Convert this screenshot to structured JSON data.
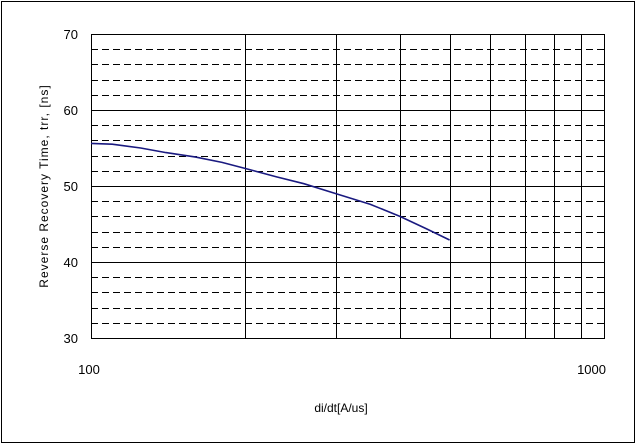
{
  "chart_data": {
    "type": "line",
    "title": "",
    "xlabel": "di/dt[A/us]",
    "ylabel": "Reverse Recovery Time, trr, [ns]",
    "xscale": "log",
    "xlim": [
      100,
      1000
    ],
    "ylim": [
      30,
      70
    ],
    "x_ticks": [
      "100",
      "1000"
    ],
    "y_ticks": [
      "30",
      "40",
      "50",
      "60",
      "70"
    ],
    "grid": {
      "major": "solid",
      "minor": "dashed",
      "y_minor_step": 2,
      "x_gridlines": [
        100,
        200,
        300,
        400,
        500,
        600,
        700,
        800,
        900,
        1000
      ]
    },
    "line_color": "#1a1a80",
    "series": [
      {
        "x": [
          100,
          110,
          125,
          140,
          160,
          180,
          200,
          230,
          260,
          300,
          350,
          400,
          450,
          500
        ],
        "y": [
          55.6,
          55.5,
          55.0,
          54.4,
          53.8,
          53.1,
          52.3,
          51.2,
          50.3,
          49.0,
          47.6,
          46.0,
          44.4,
          42.9
        ]
      }
    ]
  }
}
